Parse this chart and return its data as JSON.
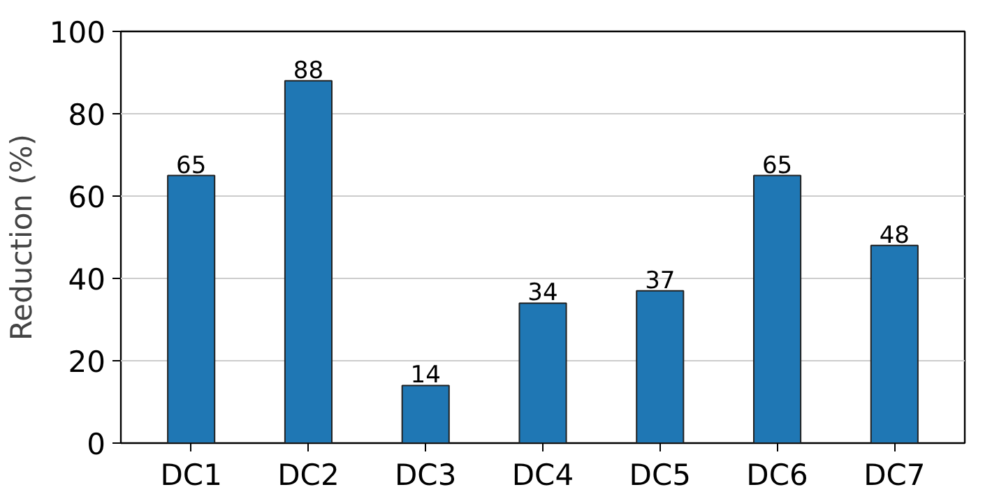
{
  "chart_data": {
    "type": "bar",
    "ylabel": "Reduction (%)",
    "categories": [
      "DC1",
      "DC2",
      "DC3",
      "DC4",
      "DC5",
      "DC6",
      "DC7"
    ],
    "values": [
      65,
      88,
      14,
      34,
      37,
      65,
      48
    ],
    "color": "#1f77b4",
    "data_labels": true,
    "grid": "y",
    "ylim": [
      0,
      100
    ],
    "yticks": [
      0,
      20,
      40,
      60,
      80,
      100
    ]
  }
}
